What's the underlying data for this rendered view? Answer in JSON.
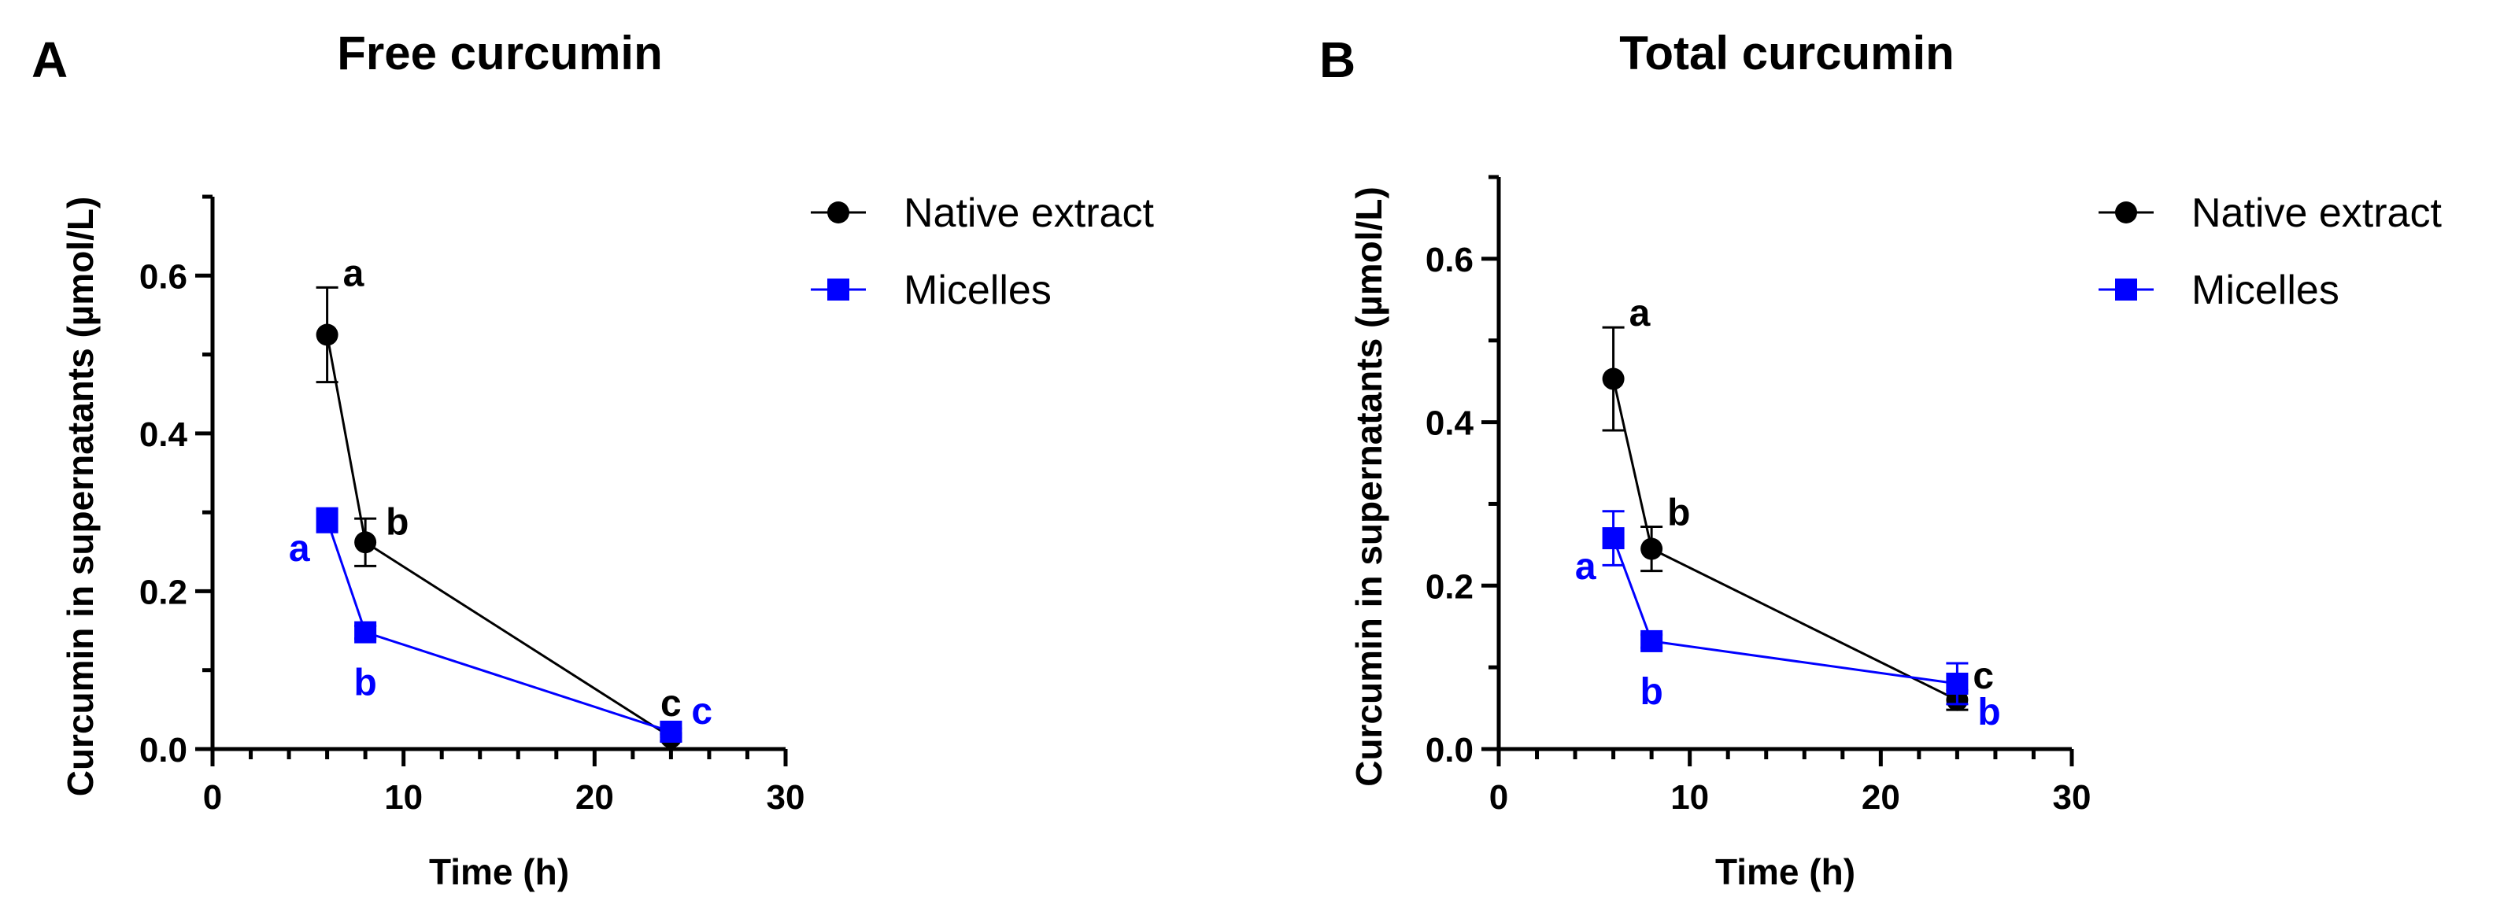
{
  "chart_data": [
    {
      "type": "line",
      "panel_label": "A",
      "title": "Free curcumin",
      "xlabel": "Time (h)",
      "ylabel": "Curcumin in supernatants (µmol/L)",
      "xlim": [
        0,
        30
      ],
      "ylim": [
        0,
        0.7
      ],
      "x_ticks": [
        0,
        10,
        20,
        30
      ],
      "x_tick_labels": [
        "0",
        "10",
        "20",
        "30"
      ],
      "x_minor_step": 2,
      "y_ticks": [
        0,
        0.2,
        0.4,
        0.6
      ],
      "y_tick_labels": [
        "0.0",
        "0.2",
        "0.4",
        "0.6"
      ],
      "y_minor_step": 0.1,
      "grid": false,
      "legend_position": "top-right",
      "series": [
        {
          "name": "Native extract",
          "color": "#000000",
          "marker": "circle",
          "x": [
            6,
            8,
            24
          ],
          "y": [
            0.525,
            0.262,
            0.015
          ],
          "err": [
            0.06,
            0.03,
            0.005
          ],
          "labels": [
            "a",
            "b",
            "c"
          ],
          "label_pos": [
            "upper-right",
            "right",
            "above"
          ]
        },
        {
          "name": "Micelles",
          "color": "#0000ff",
          "marker": "square",
          "x": [
            6,
            8,
            24
          ],
          "y": [
            0.29,
            0.148,
            0.022
          ],
          "err": [
            0.015,
            0.008,
            0.004
          ],
          "labels": [
            "a",
            "b",
            "c"
          ],
          "label_pos": [
            "lower-left",
            "below",
            "right"
          ]
        }
      ]
    },
    {
      "type": "line",
      "panel_label": "B",
      "title": "Total curcumin",
      "xlabel": "Time (h)",
      "ylabel": "Curcumin in supernatants (µmol/L)",
      "xlim": [
        0,
        30
      ],
      "ylim": [
        0,
        0.7
      ],
      "x_ticks": [
        0,
        10,
        20,
        30
      ],
      "x_tick_labels": [
        "0",
        "10",
        "20",
        "30"
      ],
      "x_minor_step": 2,
      "y_ticks": [
        0,
        0.2,
        0.4,
        0.6
      ],
      "y_tick_labels": [
        "0.0",
        "0.2",
        "0.4",
        "0.6"
      ],
      "y_minor_step": 0.1,
      "grid": false,
      "legend_position": "top-right",
      "series": [
        {
          "name": "Native extract",
          "color": "#000000",
          "marker": "circle",
          "x": [
            6,
            8,
            24
          ],
          "y": [
            0.453,
            0.245,
            0.06
          ],
          "err": [
            0.063,
            0.027,
            0.012
          ],
          "labels": [
            "a",
            "b",
            "c"
          ],
          "label_pos": [
            "upper-right",
            "upper-right",
            "upper-right"
          ]
        },
        {
          "name": "Micelles",
          "color": "#0000ff",
          "marker": "square",
          "x": [
            6,
            8,
            24
          ],
          "y": [
            0.258,
            0.132,
            0.08
          ],
          "err": [
            0.033,
            0.008,
            0.025
          ],
          "labels": [
            "a",
            "b",
            "b"
          ],
          "label_pos": [
            "lower-left",
            "below",
            "lower-right"
          ]
        }
      ]
    }
  ]
}
